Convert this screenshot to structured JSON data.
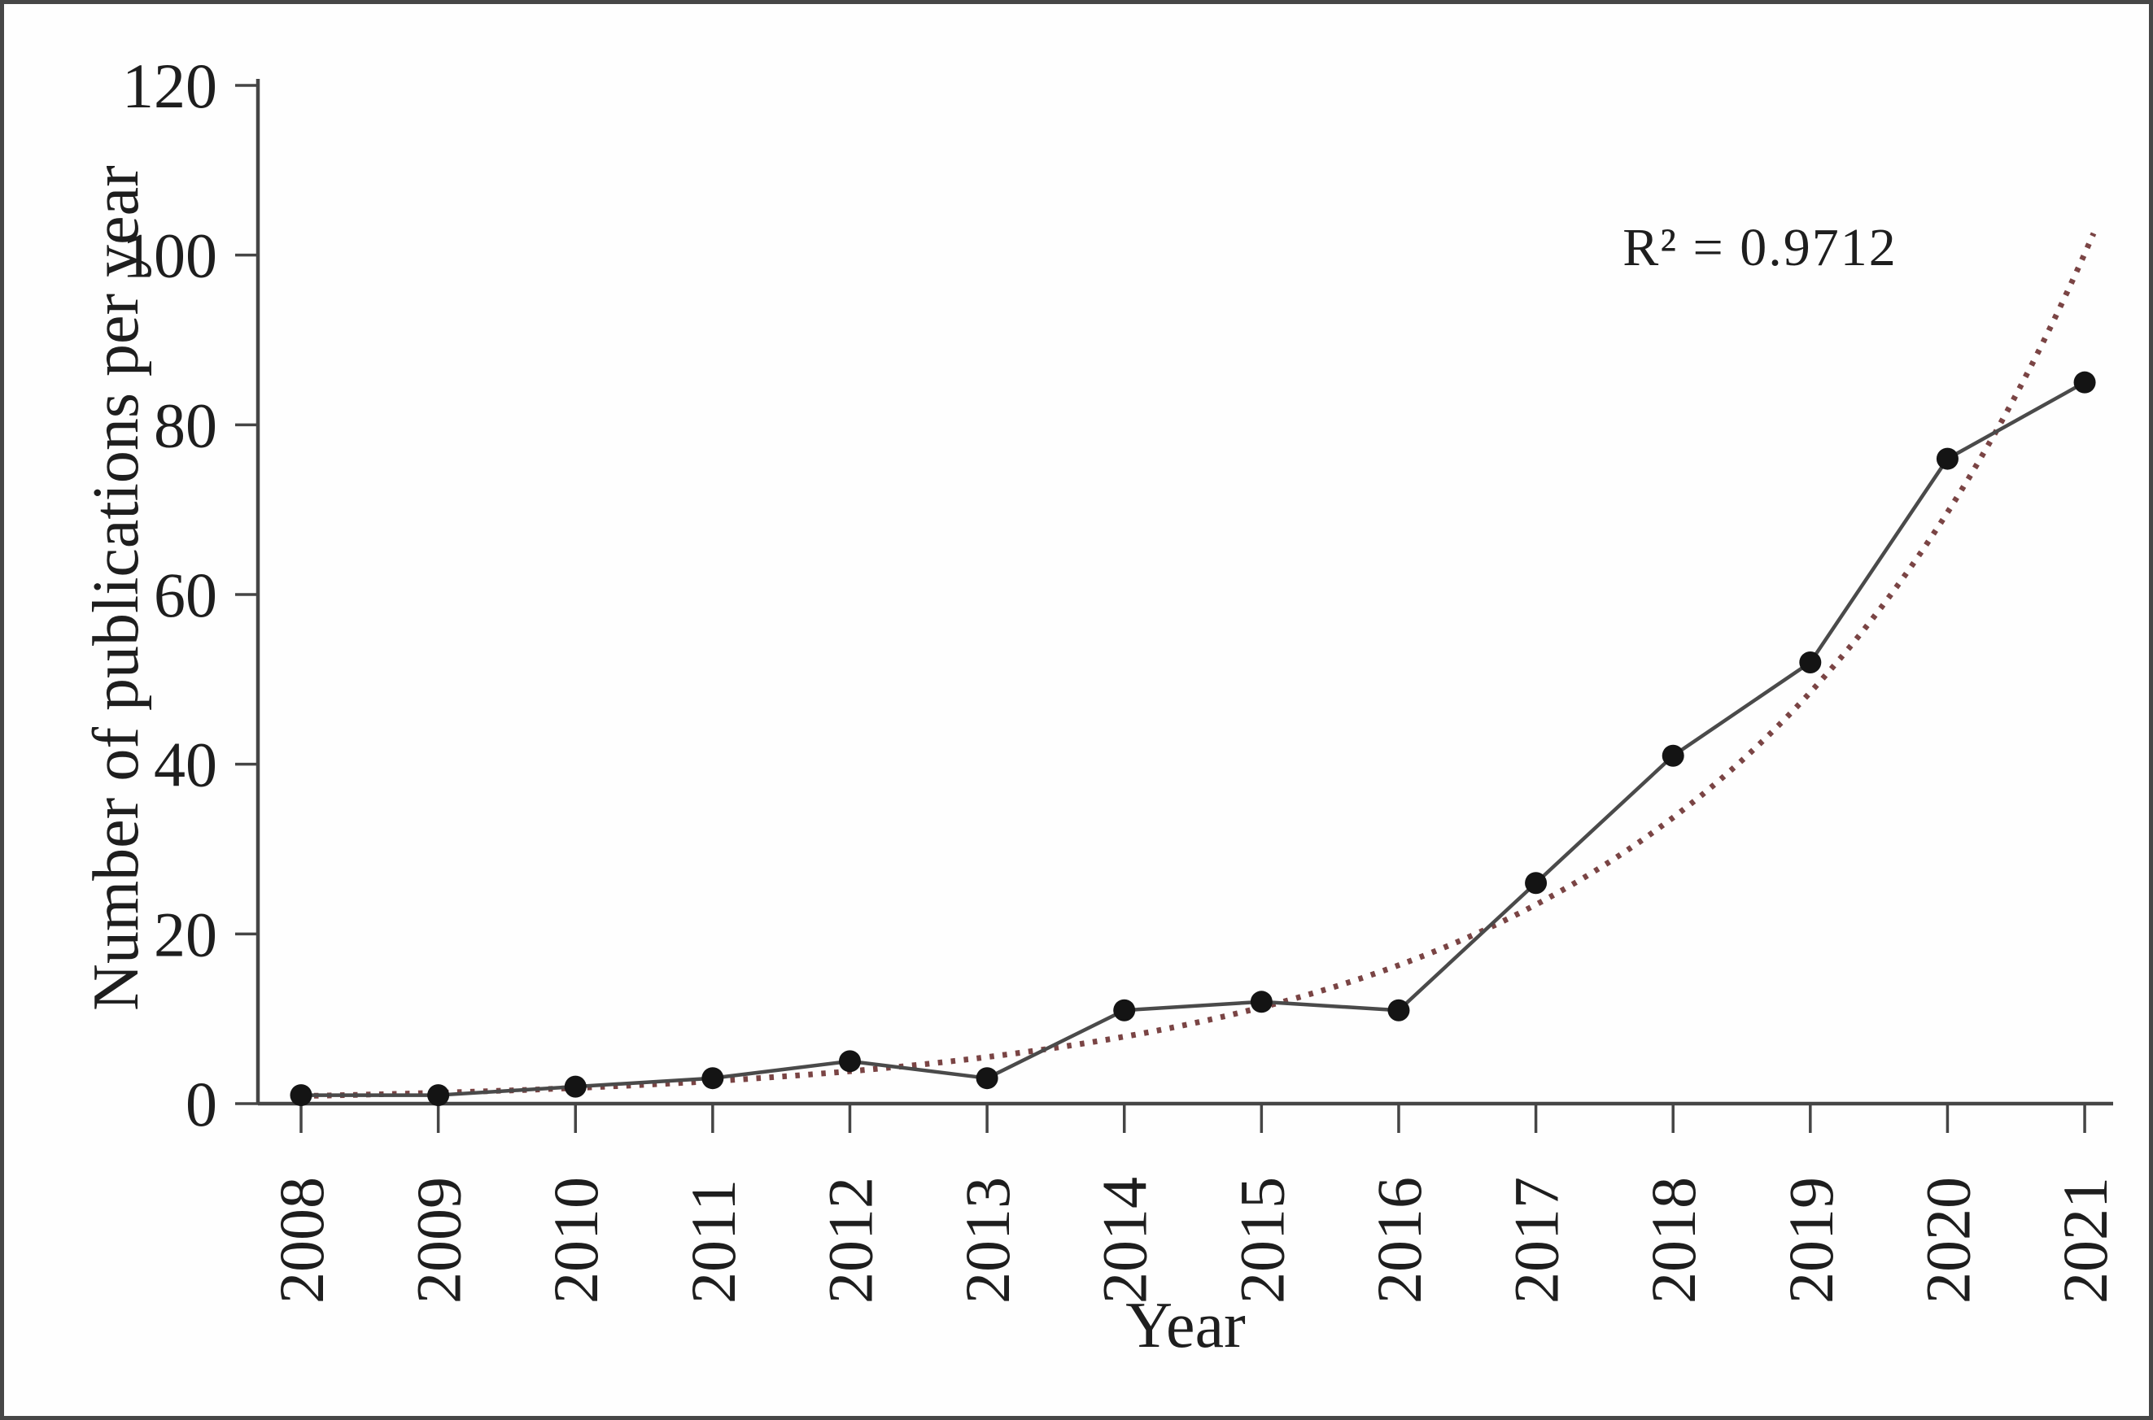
{
  "figure": {
    "background": "#fefefe",
    "frame_color": "#474747"
  },
  "chart_data": {
    "type": "line",
    "title": "",
    "xlabel": "Year",
    "ylabel": "Number of publications per year",
    "annotation": "R² = 0.9712",
    "categories": [
      "2008",
      "2009",
      "2010",
      "2011",
      "2012",
      "2013",
      "2014",
      "2015",
      "2016",
      "2017",
      "2018",
      "2019",
      "2020",
      "2021"
    ],
    "series": [
      {
        "name": "Number of publications per year",
        "values": [
          1,
          1,
          2,
          3,
          5,
          3,
          11,
          12,
          11,
          26,
          41,
          52,
          76,
          85
        ],
        "color": "#4a4a4a",
        "marker": "circle",
        "marker_color": "#141414"
      },
      {
        "name": "Exponential trendline",
        "style": "dotted",
        "color": "#7a4444",
        "fit_a": 0.894,
        "fit_b": 0.363,
        "r_squared": 0.9712
      }
    ],
    "ylim": [
      0,
      120
    ],
    "yticks": [
      0,
      20,
      40,
      60,
      80,
      100,
      120
    ],
    "axis_color": "#454545",
    "grid": false,
    "legend": false
  }
}
